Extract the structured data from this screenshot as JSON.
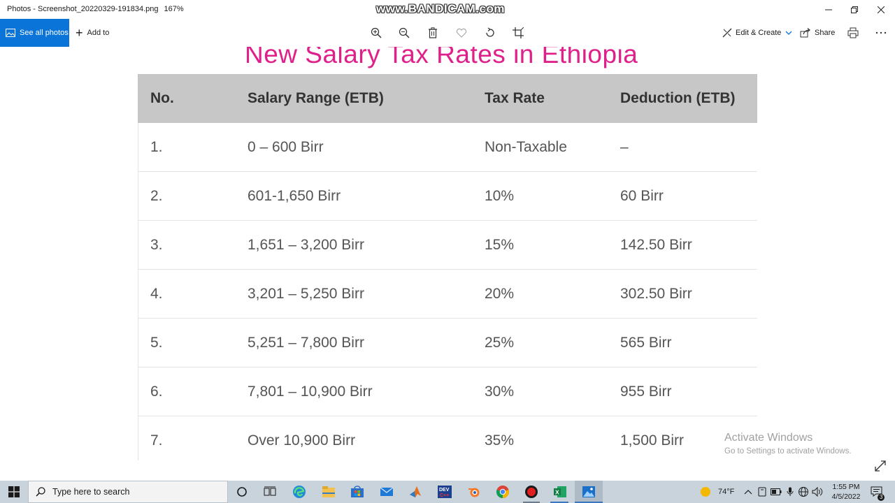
{
  "window": {
    "title": "Photos - Screenshot_20220329-191834.png",
    "zoom": "167%",
    "watermark": "www.BANDICAM.com"
  },
  "toolbar": {
    "see_all_photos": "See all photos",
    "add_to": "Add to",
    "edit_create": "Edit & Create",
    "share": "Share"
  },
  "photo": {
    "heading": "New Salary Tax Rates in Ethiopia",
    "table": {
      "headers": [
        "No.",
        "Salary Range (ETB)",
        "Tax Rate",
        "Deduction (ETB)"
      ],
      "rows": [
        [
          "1.",
          "0 – 600 Birr",
          "Non-Taxable",
          "–"
        ],
        [
          "2.",
          "601-1,650 Birr",
          "10%",
          "60 Birr"
        ],
        [
          "3.",
          "1,651 – 3,200 Birr",
          "15%",
          "142.50 Birr"
        ],
        [
          "4.",
          "3,201 – 5,250 Birr",
          "20%",
          "302.50 Birr"
        ],
        [
          "5.",
          "5,251 – 7,800 Birr",
          "25%",
          "565 Birr"
        ],
        [
          "6.",
          "7,801 – 10,900 Birr",
          "30%",
          "955 Birr"
        ],
        [
          "7.",
          "Over 10,900 Birr",
          "35%",
          "1,500 Birr"
        ]
      ]
    }
  },
  "activation": {
    "line1": "Activate Windows",
    "line2": "Go to Settings to activate Windows."
  },
  "taskbar": {
    "search_placeholder": "Type here to search",
    "weather": "74°F",
    "time": "1:55 PM",
    "date": "4/5/2022",
    "notification_count": "3"
  }
}
